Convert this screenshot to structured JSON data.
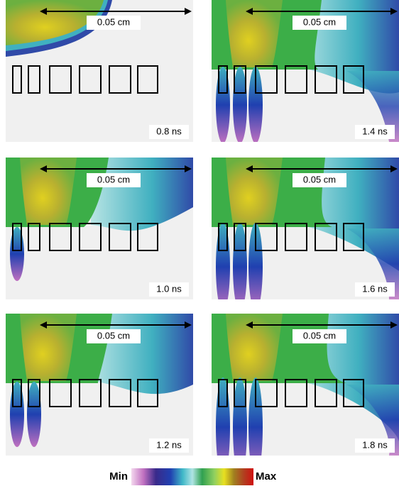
{
  "panels": [
    {
      "scale": "0.05 cm",
      "time": "0.8 ns"
    },
    {
      "scale": "0.05 cm",
      "time": "1.4 ns"
    },
    {
      "scale": "0.05 cm",
      "time": "1.0 ns"
    },
    {
      "scale": "0.05 cm",
      "time": "1.6 ns"
    },
    {
      "scale": "0.05 cm",
      "time": "1.2 ns"
    },
    {
      "scale": "0.05 cm",
      "time": "1.8 ns"
    }
  ],
  "colorbar": {
    "min": "Min",
    "max": "Max"
  }
}
